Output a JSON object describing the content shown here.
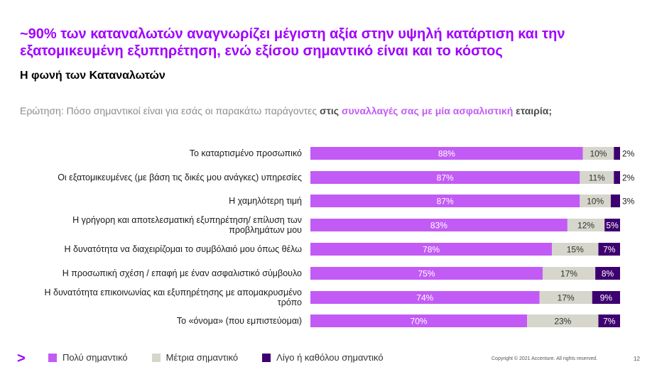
{
  "header": {
    "title_line1": "~90% των καταναλωτών αναγνωρίζει μέγιστη αξία στην υψηλή κατάρτιση και την",
    "title_line2": "εξατομικευμένη εξυπηρέτηση, ενώ εξίσου σημαντικό είναι και το κόστος",
    "subtitle": "Η φωνή των Καταναλωτών"
  },
  "question": {
    "prefix": "Ερώτηση: Πόσο σημαντικοί είναι για εσάς οι παρακάτω παράγοντες ",
    "bold1": "στις ",
    "purple": "συναλλαγές σας με μία ασφαλιστική",
    "bold2": " εταιρία;"
  },
  "colors": {
    "very": "#c25bf5",
    "moderate": "#d6d6cc",
    "little": "#3d0070",
    "title": "#a100ff"
  },
  "chart_data": {
    "type": "bar",
    "orientation": "horizontal",
    "stacked": true,
    "categories": [
      [
        "Το καταρτισμένο προσωπικό"
      ],
      [
        "Οι εξατομικευμένες (με βάση τις δικές μου ανάγκες) υπηρεσίες"
      ],
      [
        "Η χαμηλότερη τιμή"
      ],
      [
        "Η γρήγορη και αποτελεσματική εξυπηρέτηση/ επίλυση των",
        "προβλημάτων μου"
      ],
      [
        "Η δυνατότητα να διαχειρίζομαι το συμβόλαιό μου όπως θέλω"
      ],
      [
        "Η προσωπική σχέση / επαφή με έναν ασφαλιστικό σύμβουλο"
      ],
      [
        "Η δυνατότητα επικοινωνίας και εξυπηρέτησης με απομακρυσμένο",
        "τρόπο"
      ],
      [
        "Το «όνομα» (που εμπιστεύομαι)"
      ]
    ],
    "series": [
      {
        "name": "Πολύ σημαντικό",
        "values": [
          88,
          87,
          87,
          83,
          78,
          75,
          74,
          70
        ]
      },
      {
        "name": "Μέτρια σημαντικό",
        "values": [
          10,
          11,
          10,
          12,
          15,
          17,
          17,
          23
        ]
      },
      {
        "name": "Λίγο ή καθόλου σημαντικό",
        "values": [
          2,
          2,
          3,
          5,
          7,
          8,
          9,
          7
        ]
      }
    ],
    "xlim": [
      0,
      100
    ],
    "legend": "bottom"
  },
  "legend": {
    "very": "Πολύ σημαντικό",
    "moderate": "Μέτρια σημαντικό",
    "little": "Λίγο ή καθόλου σημαντικό"
  },
  "footer": {
    "copyright": "Copyright © 2021 Accenture. All rights reserved.",
    "page_number": "12",
    "logo": ">"
  }
}
